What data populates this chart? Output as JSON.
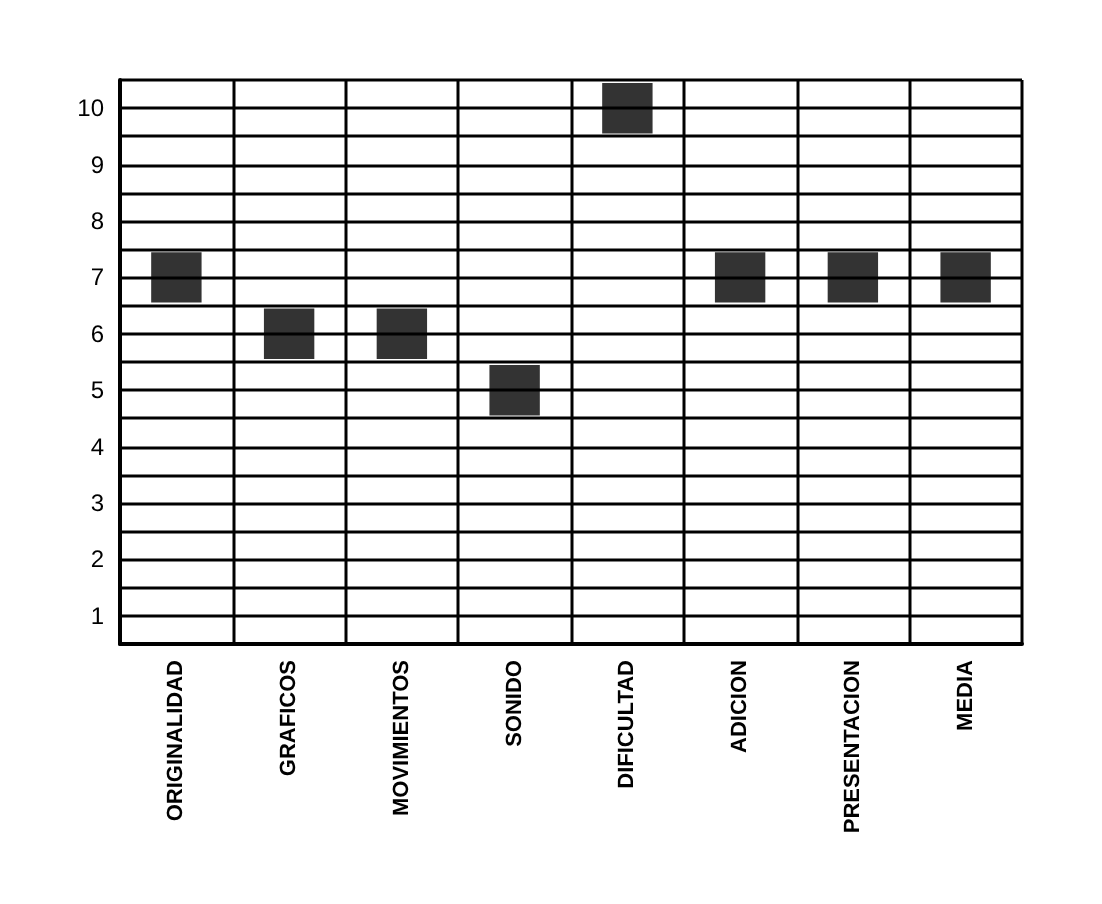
{
  "chart_data": {
    "type": "scatter",
    "marker": "square",
    "grid": true,
    "categories": [
      "ORIGINALIDAD",
      "GRAFICOS",
      "MOVIMIENTOS",
      "SONIDO",
      "DIFICULTAD",
      "ADICION",
      "PRESENTACION",
      "MEDIA"
    ],
    "values": [
      7,
      6,
      6,
      5,
      10,
      7,
      7,
      7
    ],
    "color": "#000000",
    "ylim": [
      0.5,
      10.5
    ],
    "yticks": [
      {
        "value": 0.5,
        "label": null
      },
      1,
      {
        "value": 1.5,
        "label": null
      },
      2,
      {
        "value": 2.5,
        "label": null
      },
      3,
      {
        "value": 3.5,
        "label": null
      },
      4,
      {
        "value": 4.5,
        "label": null
      },
      5,
      {
        "value": 5.5,
        "label": null
      },
      6,
      {
        "value": 6.5,
        "label": null
      },
      7,
      {
        "value": 7.5,
        "label": null
      },
      8,
      {
        "value": 8.5,
        "label": null
      },
      9,
      {
        "value": 9.5,
        "label": null
      },
      10,
      {
        "value": 10.5,
        "label": null
      }
    ]
  }
}
